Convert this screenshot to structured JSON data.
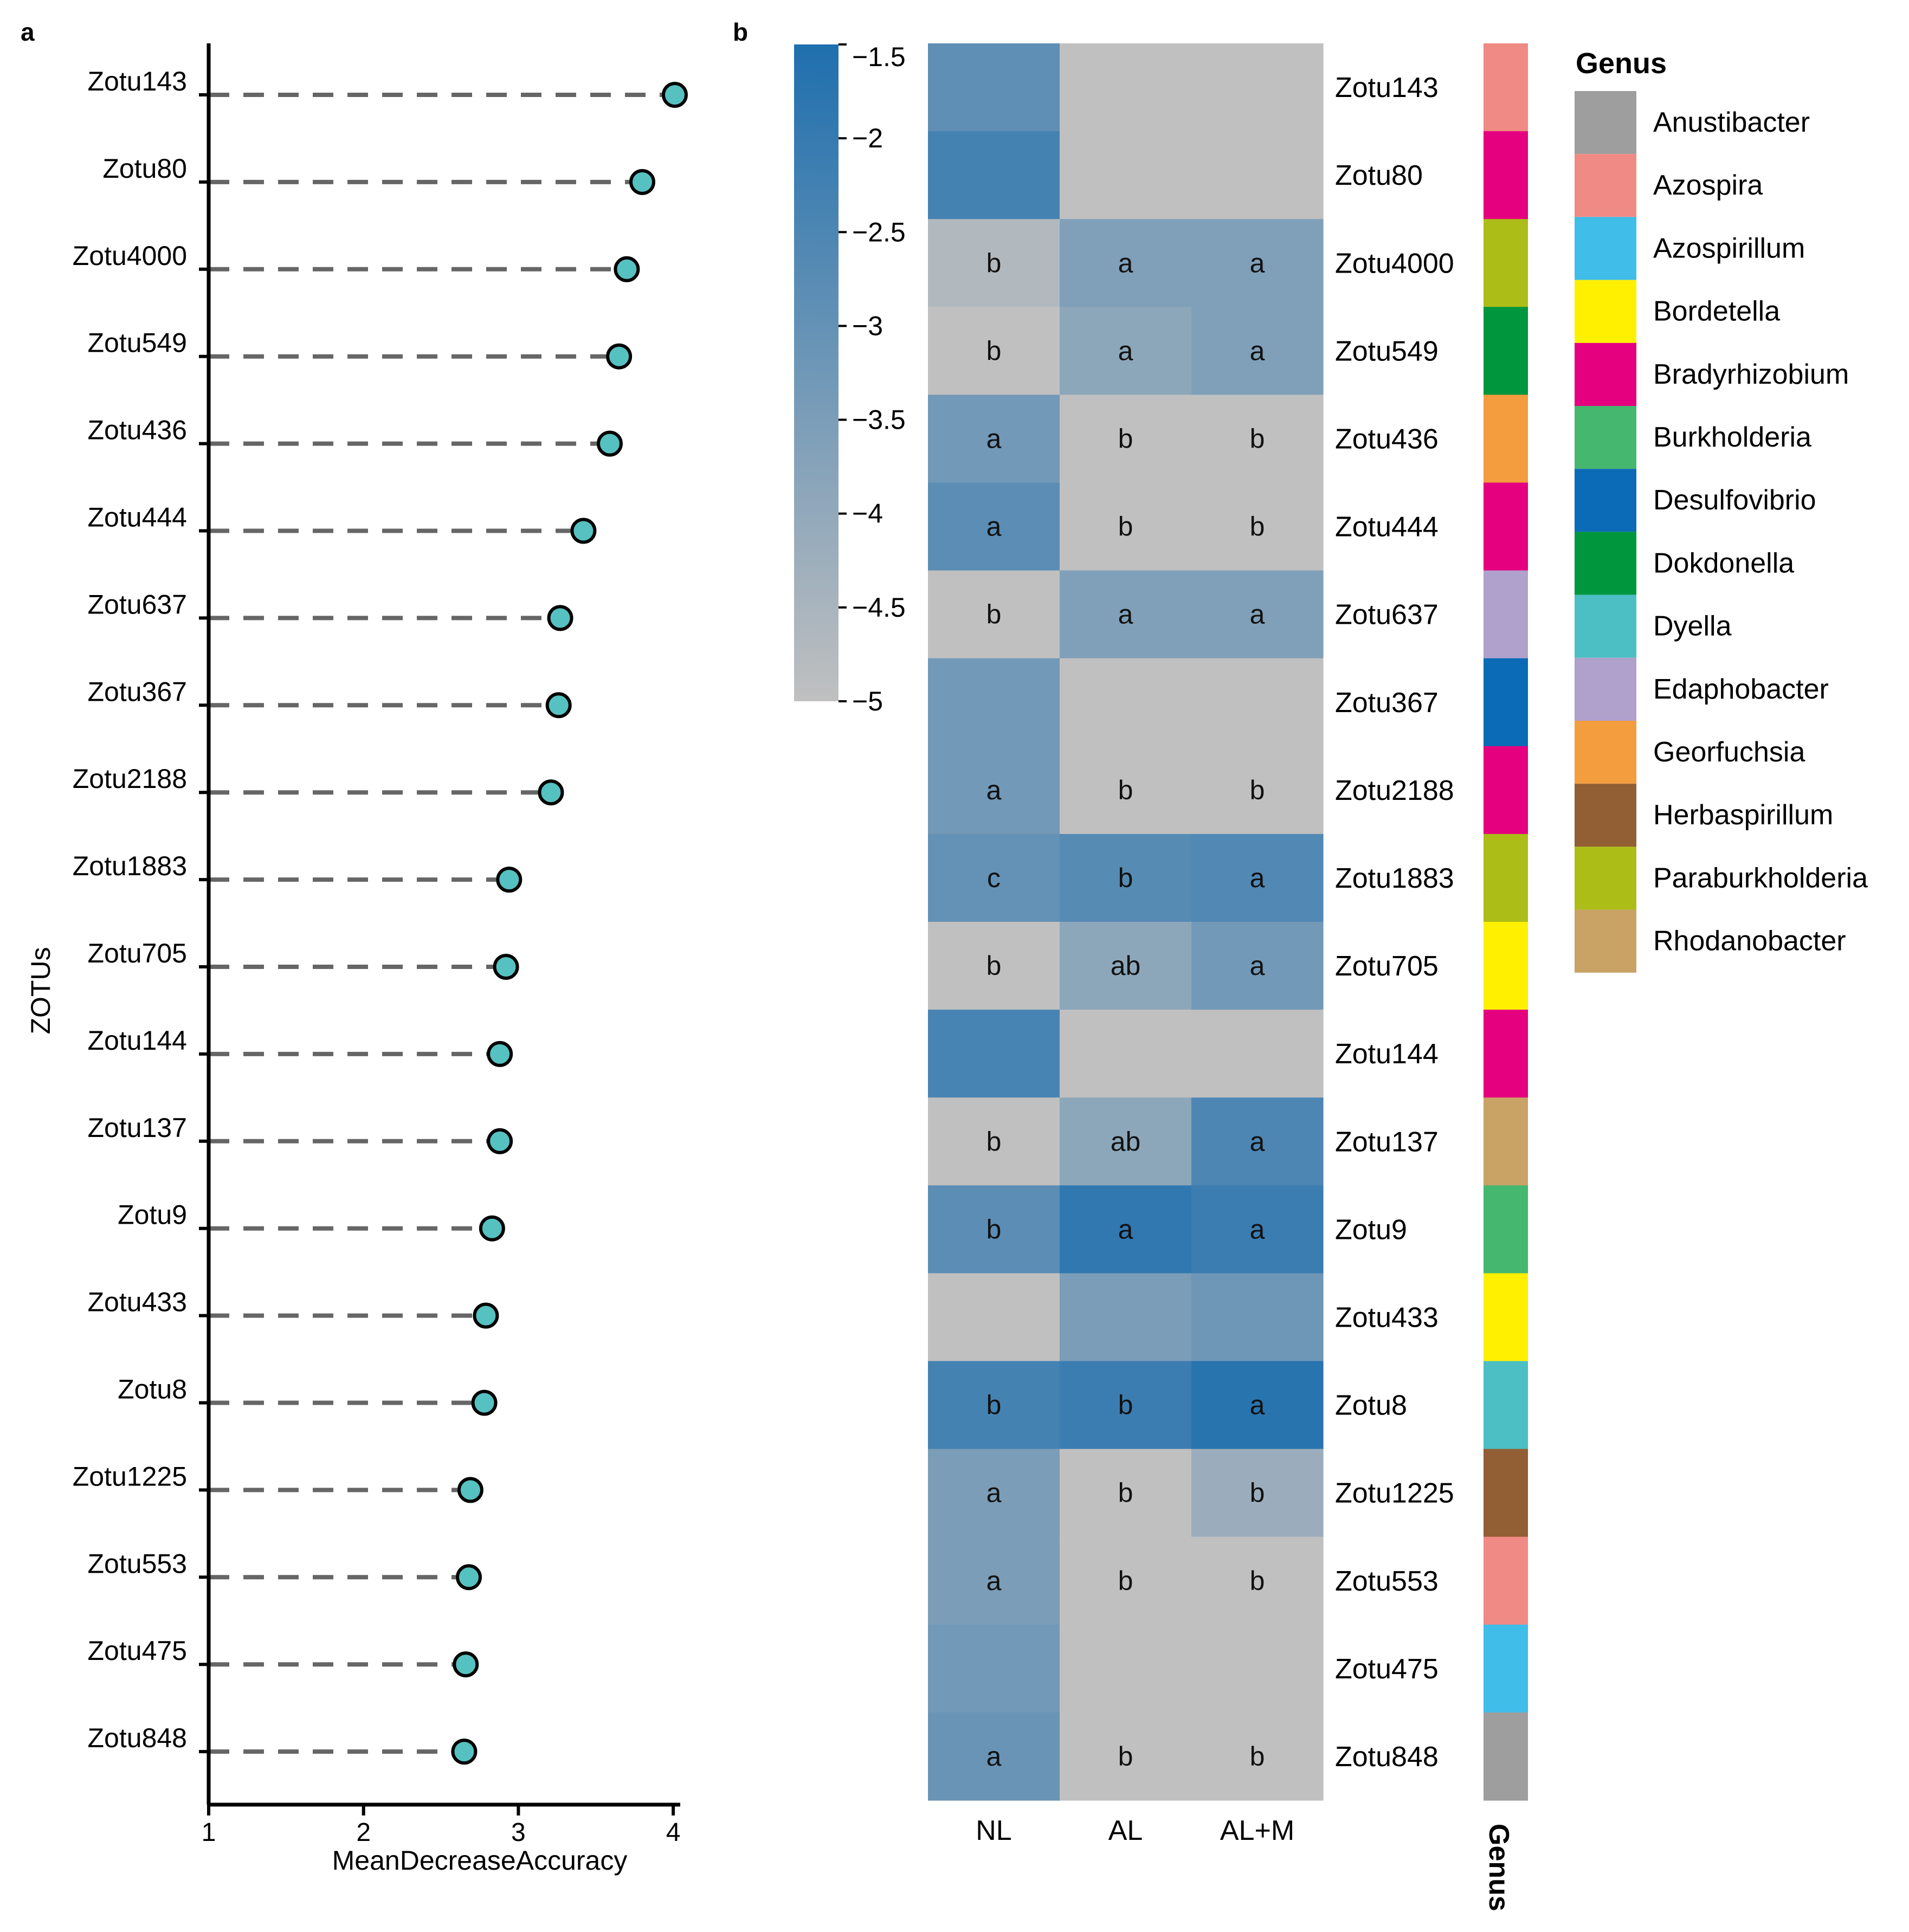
{
  "panel_labels": {
    "a": "a",
    "b": "b"
  },
  "chart_data": [
    {
      "type": "scatter",
      "subtype": "lollipop",
      "title": "",
      "xlabel": "MeanDecreaseAccuracy",
      "ylabel": "ZOTUs",
      "xlim": [
        1,
        4
      ],
      "xticks": [
        1,
        2,
        3,
        4
      ],
      "grid": false,
      "point_color": "#56c1c1",
      "stem_color": "#666666",
      "categories": [
        "Zotu143",
        "Zotu80",
        "Zotu4000",
        "Zotu549",
        "Zotu436",
        "Zotu444",
        "Zotu637",
        "Zotu367",
        "Zotu2188",
        "Zotu1883",
        "Zotu705",
        "Zotu144",
        "Zotu137",
        "Zotu9",
        "Zotu433",
        "Zotu8",
        "Zotu1225",
        "Zotu553",
        "Zotu475",
        "Zotu848"
      ],
      "values": [
        4.01,
        3.8,
        3.7,
        3.65,
        3.59,
        3.42,
        3.27,
        3.26,
        3.21,
        2.94,
        2.92,
        2.88,
        2.88,
        2.83,
        2.79,
        2.78,
        2.69,
        2.68,
        2.66,
        2.65
      ]
    },
    {
      "type": "heatmap",
      "title": "",
      "columns": [
        "NL",
        "AL",
        "AL+M"
      ],
      "rows": [
        "Zotu143",
        "Zotu80",
        "Zotu4000",
        "Zotu549",
        "Zotu436",
        "Zotu444",
        "Zotu637",
        "Zotu367",
        "Zotu2188",
        "Zotu1883",
        "Zotu705",
        "Zotu144",
        "Zotu137",
        "Zotu9",
        "Zotu433",
        "Zotu8",
        "Zotu1225",
        "Zotu553",
        "Zotu475",
        "Zotu848"
      ],
      "values": [
        [
          -2.9,
          -5.0,
          -5.0
        ],
        [
          -2.3,
          -5.0,
          -5.0
        ],
        [
          -4.7,
          -3.6,
          -3.6
        ],
        [
          -5.0,
          -3.9,
          -3.6
        ],
        [
          -3.3,
          -5.0,
          -5.0
        ],
        [
          -2.8,
          -5.0,
          -5.0
        ],
        [
          -5.0,
          -3.6,
          -3.6
        ],
        [
          -3.3,
          -5.0,
          -5.0
        ],
        [
          -3.3,
          -5.0,
          -5.0
        ],
        [
          -3.0,
          -2.7,
          -2.6
        ],
        [
          -5.0,
          -3.9,
          -3.3
        ],
        [
          -2.4,
          -5.0,
          -5.0
        ],
        [
          -5.0,
          -3.9,
          -2.5
        ],
        [
          -2.8,
          -1.9,
          -2.1
        ],
        [
          -5.0,
          -3.5,
          -3.2
        ],
        [
          -2.3,
          -2.1,
          -1.7
        ],
        [
          -3.5,
          -5.0,
          -4.2
        ],
        [
          -3.5,
          -5.0,
          -5.0
        ],
        [
          -3.3,
          -5.0,
          -5.0
        ],
        [
          -3.1,
          -5.0,
          -5.0
        ]
      ],
      "significance_letters": [
        [
          "",
          "",
          ""
        ],
        [
          "",
          "",
          ""
        ],
        [
          "b",
          "a",
          "a"
        ],
        [
          "b",
          "a",
          "a"
        ],
        [
          "a",
          "b",
          "b"
        ],
        [
          "a",
          "b",
          "b"
        ],
        [
          "b",
          "a",
          "a"
        ],
        [
          "",
          "",
          ""
        ],
        [
          "a",
          "b",
          "b"
        ],
        [
          "c",
          "b",
          "a"
        ],
        [
          "b",
          "ab",
          "a"
        ],
        [
          "",
          "",
          ""
        ],
        [
          "b",
          "ab",
          "a"
        ],
        [
          "b",
          "a",
          "a"
        ],
        [
          "",
          "",
          ""
        ],
        [
          "b",
          "b",
          "a"
        ],
        [
          "a",
          "b",
          "b"
        ],
        [
          "a",
          "b",
          "b"
        ],
        [
          "",
          "",
          ""
        ],
        [
          "a",
          "b",
          "b"
        ]
      ],
      "colorbar": {
        "range": [
          -5,
          -1.5
        ],
        "ticks": [
          -1.5,
          -2,
          -2.5,
          -3,
          -3.5,
          -4,
          -4.5,
          -5
        ],
        "tick_labels": [
          "−1.5",
          "−2",
          "−2.5",
          "−3",
          "−3.5",
          "−4",
          "−4.5",
          "−5"
        ],
        "low_color": "#c0c0c0",
        "high_color": "#1f6fae"
      },
      "genus_annotation": {
        "label": "Genus",
        "row_genus": [
          "Azospira",
          "Bradyrhizobium",
          "Paraburkholderia",
          "Dokdonella",
          "Georfuchsia",
          "Bradyrhizobium",
          "Edaphobacter",
          "Desulfovibrio",
          "Bradyrhizobium",
          "Paraburkholderia",
          "Bordetella",
          "Bradyrhizobium",
          "Rhodanobacter",
          "Burkholderia",
          "Bordetella",
          "Dyella",
          "Herbaspirillum",
          "Azospira",
          "Azospirillum",
          "Anustibacter"
        ]
      },
      "legend": {
        "title": "Genus",
        "placement": "right",
        "items": [
          {
            "name": "Anustibacter",
            "color": "#9e9e9e"
          },
          {
            "name": "Azospira",
            "color": "#f08a84"
          },
          {
            "name": "Azospirillum",
            "color": "#40bde8"
          },
          {
            "name": "Bordetella",
            "color": "#fff000"
          },
          {
            "name": "Bradyrhizobium",
            "color": "#e4007f"
          },
          {
            "name": "Burkholderia",
            "color": "#45b76e"
          },
          {
            "name": "Desulfovibrio",
            "color": "#0c6bb6"
          },
          {
            "name": "Dokdonella",
            "color": "#00963d"
          },
          {
            "name": "Dyella",
            "color": "#4cbfc4"
          },
          {
            "name": "Edaphobacter",
            "color": "#b0a0cc"
          },
          {
            "name": "Georfuchsia",
            "color": "#f39d3e"
          },
          {
            "name": "Herbaspirillum",
            "color": "#925e34"
          },
          {
            "name": "Paraburkholderia",
            "color": "#acbd18"
          },
          {
            "name": "Rhodanobacter",
            "color": "#c9a265"
          }
        ]
      }
    }
  ]
}
